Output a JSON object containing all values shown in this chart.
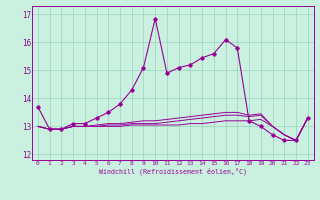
{
  "xlabel": "Windchill (Refroidissement éolien,°C)",
  "bg_color": "#caf0e0",
  "grid_color": "#a0d8c0",
  "line_color": "#990099",
  "ylim": [
    11.8,
    17.3
  ],
  "xlim": [
    -0.5,
    23.5
  ],
  "yticks": [
    12,
    13,
    14,
    15,
    16,
    17
  ],
  "xticks": [
    0,
    1,
    2,
    3,
    4,
    5,
    6,
    7,
    8,
    9,
    10,
    11,
    12,
    13,
    14,
    15,
    16,
    17,
    18,
    19,
    20,
    21,
    22,
    23
  ],
  "series_main": [
    13.7,
    12.9,
    12.9,
    13.1,
    13.1,
    13.3,
    13.5,
    13.8,
    14.3,
    15.1,
    16.85,
    14.9,
    15.1,
    15.2,
    15.45,
    15.6,
    16.1,
    15.8,
    13.2,
    13.0,
    12.7,
    12.5,
    12.5,
    13.3
  ],
  "series_flat1": [
    13.0,
    12.9,
    12.9,
    13.0,
    13.0,
    13.0,
    13.0,
    13.0,
    13.05,
    13.05,
    13.05,
    13.05,
    13.05,
    13.1,
    13.1,
    13.15,
    13.2,
    13.2,
    13.2,
    13.25,
    13.0,
    12.7,
    12.5,
    13.3
  ],
  "series_flat2": [
    13.0,
    12.9,
    12.9,
    13.0,
    13.0,
    13.0,
    13.05,
    13.05,
    13.1,
    13.1,
    13.1,
    13.15,
    13.2,
    13.25,
    13.3,
    13.35,
    13.4,
    13.4,
    13.35,
    13.4,
    13.0,
    12.7,
    12.5,
    13.3
  ],
  "series_flat3": [
    13.0,
    12.9,
    12.9,
    13.0,
    13.0,
    13.05,
    13.1,
    13.1,
    13.15,
    13.2,
    13.2,
    13.25,
    13.3,
    13.35,
    13.4,
    13.45,
    13.5,
    13.5,
    13.4,
    13.45,
    13.0,
    12.7,
    12.5,
    13.3
  ]
}
